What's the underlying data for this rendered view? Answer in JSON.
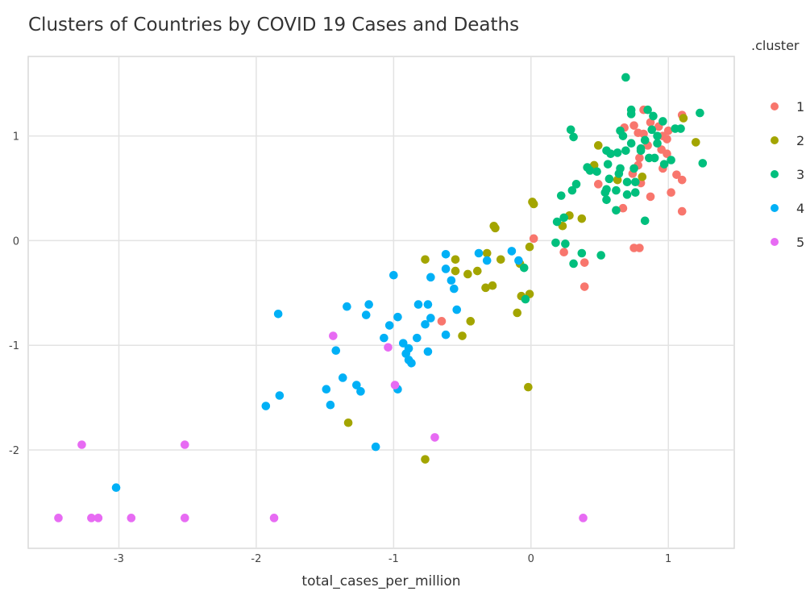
{
  "chart_data": {
    "type": "scatter",
    "title": "Clusters of Countries by COVID 19 Cases and Deaths",
    "xlabel": "total_cases_per_million",
    "ylabel": "",
    "xlim": [
      -3.66,
      1.48
    ],
    "ylim": [
      -2.94,
      1.76
    ],
    "x_ticks": [
      -3,
      -2,
      -1,
      0,
      1
    ],
    "y_ticks": [
      -2,
      -1,
      0,
      1
    ],
    "grid": true,
    "legend": {
      "title": ".cluster",
      "placement": "right"
    },
    "series": [
      {
        "name": "1",
        "color": "#F8766D",
        "points": [
          [
            0.82,
            1.25
          ],
          [
            1.1,
            1.2
          ],
          [
            0.68,
            1.08
          ],
          [
            0.75,
            1.1
          ],
          [
            0.78,
            1.03
          ],
          [
            0.82,
            1.02
          ],
          [
            0.87,
            1.13
          ],
          [
            0.93,
            1.09
          ],
          [
            0.96,
            1.0
          ],
          [
            1.0,
            1.05
          ],
          [
            0.99,
            0.97
          ],
          [
            0.85,
            0.91
          ],
          [
            0.95,
            0.87
          ],
          [
            0.99,
            0.83
          ],
          [
            0.79,
            0.79
          ],
          [
            0.78,
            0.72
          ],
          [
            0.74,
            0.64
          ],
          [
            0.96,
            0.69
          ],
          [
            1.06,
            0.63
          ],
          [
            1.1,
            0.58
          ],
          [
            0.49,
            0.54
          ],
          [
            0.8,
            0.55
          ],
          [
            0.87,
            0.42
          ],
          [
            1.02,
            0.46
          ],
          [
            0.67,
            0.31
          ],
          [
            1.1,
            0.28
          ],
          [
            0.02,
            0.02
          ],
          [
            0.24,
            -0.11
          ],
          [
            0.39,
            -0.21
          ],
          [
            0.39,
            -0.44
          ],
          [
            0.75,
            -0.07
          ],
          [
            0.79,
            -0.07
          ],
          [
            -0.65,
            -0.77
          ]
        ]
      },
      {
        "name": "2",
        "color": "#A3A500",
        "points": [
          [
            1.11,
            1.17
          ],
          [
            1.2,
            0.94
          ],
          [
            0.49,
            0.91
          ],
          [
            0.46,
            0.72
          ],
          [
            0.63,
            0.58
          ],
          [
            0.81,
            0.61
          ],
          [
            0.01,
            0.37
          ],
          [
            0.02,
            0.35
          ],
          [
            0.28,
            0.24
          ],
          [
            0.37,
            0.21
          ],
          [
            0.23,
            0.14
          ],
          [
            -0.27,
            0.14
          ],
          [
            -0.26,
            0.12
          ],
          [
            -0.77,
            -0.18
          ],
          [
            -0.55,
            -0.18
          ],
          [
            -0.32,
            -0.12
          ],
          [
            -0.22,
            -0.18
          ],
          [
            -0.01,
            -0.06
          ],
          [
            -0.55,
            -0.29
          ],
          [
            -0.46,
            -0.32
          ],
          [
            -0.39,
            -0.29
          ],
          [
            -0.08,
            -0.22
          ],
          [
            -0.33,
            -0.45
          ],
          [
            -0.28,
            -0.43
          ],
          [
            -0.07,
            -0.53
          ],
          [
            -0.01,
            -0.51
          ],
          [
            -0.1,
            -0.69
          ],
          [
            -0.44,
            -0.77
          ],
          [
            -0.5,
            -0.91
          ],
          [
            -0.02,
            -1.4
          ],
          [
            -1.33,
            -1.74
          ],
          [
            -0.77,
            -2.09
          ]
        ]
      },
      {
        "name": "3",
        "color": "#00BF7D",
        "points": [
          [
            0.69,
            1.56
          ],
          [
            0.73,
            1.25
          ],
          [
            0.73,
            1.21
          ],
          [
            0.85,
            1.25
          ],
          [
            0.89,
            1.19
          ],
          [
            0.96,
            1.14
          ],
          [
            1.23,
            1.22
          ],
          [
            0.29,
            1.06
          ],
          [
            0.31,
            0.99
          ],
          [
            0.65,
            1.05
          ],
          [
            0.67,
            1.0
          ],
          [
            0.88,
            1.06
          ],
          [
            1.05,
            1.07
          ],
          [
            1.09,
            1.07
          ],
          [
            0.73,
            0.93
          ],
          [
            0.83,
            0.96
          ],
          [
            0.92,
            1.0
          ],
          [
            0.92,
            0.93
          ],
          [
            0.55,
            0.86
          ],
          [
            0.58,
            0.83
          ],
          [
            0.63,
            0.84
          ],
          [
            0.69,
            0.86
          ],
          [
            0.8,
            0.88
          ],
          [
            0.8,
            0.86
          ],
          [
            0.86,
            0.79
          ],
          [
            0.9,
            0.79
          ],
          [
            1.02,
            0.77
          ],
          [
            1.25,
            0.74
          ],
          [
            0.97,
            0.73
          ],
          [
            0.41,
            0.7
          ],
          [
            0.43,
            0.67
          ],
          [
            0.48,
            0.66
          ],
          [
            0.56,
            0.73
          ],
          [
            0.65,
            0.69
          ],
          [
            0.75,
            0.69
          ],
          [
            0.64,
            0.64
          ],
          [
            0.57,
            0.59
          ],
          [
            0.7,
            0.56
          ],
          [
            0.76,
            0.56
          ],
          [
            0.33,
            0.54
          ],
          [
            0.3,
            0.48
          ],
          [
            0.22,
            0.43
          ],
          [
            0.55,
            0.49
          ],
          [
            0.54,
            0.46
          ],
          [
            0.62,
            0.48
          ],
          [
            0.76,
            0.46
          ],
          [
            0.7,
            0.44
          ],
          [
            0.55,
            0.39
          ],
          [
            0.62,
            0.29
          ],
          [
            0.83,
            0.19
          ],
          [
            0.19,
            0.18
          ],
          [
            0.24,
            0.22
          ],
          [
            0.18,
            -0.02
          ],
          [
            0.25,
            -0.03
          ],
          [
            0.37,
            -0.12
          ],
          [
            0.31,
            -0.22
          ],
          [
            0.51,
            -0.14
          ],
          [
            -0.05,
            -0.26
          ],
          [
            -0.04,
            -0.56
          ]
        ]
      },
      {
        "name": "4",
        "color": "#00B0F6",
        "points": [
          [
            -0.62,
            -0.13
          ],
          [
            -0.38,
            -0.12
          ],
          [
            -0.32,
            -0.19
          ],
          [
            -0.14,
            -0.1
          ],
          [
            -0.09,
            -0.19
          ],
          [
            -1.0,
            -0.33
          ],
          [
            -0.73,
            -0.35
          ],
          [
            -0.62,
            -0.27
          ],
          [
            -0.58,
            -0.38
          ],
          [
            -0.56,
            -0.46
          ],
          [
            -0.82,
            -0.61
          ],
          [
            -0.75,
            -0.61
          ],
          [
            -0.54,
            -0.66
          ],
          [
            -0.97,
            -0.73
          ],
          [
            -0.73,
            -0.74
          ],
          [
            -0.77,
            -0.8
          ],
          [
            -1.03,
            -0.81
          ],
          [
            -0.62,
            -0.9
          ],
          [
            -0.83,
            -0.93
          ],
          [
            -0.93,
            -0.98
          ],
          [
            -1.34,
            -0.63
          ],
          [
            -1.18,
            -0.61
          ],
          [
            -1.2,
            -0.71
          ],
          [
            -1.84,
            -0.7
          ],
          [
            -1.07,
            -0.93
          ],
          [
            -0.89,
            -1.03
          ],
          [
            -0.91,
            -1.08
          ],
          [
            -0.89,
            -1.14
          ],
          [
            -0.87,
            -1.17
          ],
          [
            -0.75,
            -1.06
          ],
          [
            -1.42,
            -1.05
          ],
          [
            -1.37,
            -1.31
          ],
          [
            -1.49,
            -1.42
          ],
          [
            -1.27,
            -1.38
          ],
          [
            -1.24,
            -1.44
          ],
          [
            -1.83,
            -1.48
          ],
          [
            -1.93,
            -1.58
          ],
          [
            -1.46,
            -1.57
          ],
          [
            -0.97,
            -1.42
          ],
          [
            -1.13,
            -1.97
          ],
          [
            -3.02,
            -2.36
          ]
        ]
      },
      {
        "name": "5",
        "color": "#E76BF3",
        "points": [
          [
            -1.44,
            -0.91
          ],
          [
            -1.04,
            -1.02
          ],
          [
            -0.99,
            -1.38
          ],
          [
            -0.7,
            -1.88
          ],
          [
            -3.27,
            -1.95
          ],
          [
            -2.52,
            -1.95
          ],
          [
            -3.44,
            -2.65
          ],
          [
            -3.2,
            -2.65
          ],
          [
            -3.15,
            -2.65
          ],
          [
            -2.91,
            -2.65
          ],
          [
            -2.52,
            -2.65
          ],
          [
            -1.87,
            -2.65
          ],
          [
            0.38,
            -2.65
          ]
        ]
      }
    ]
  }
}
